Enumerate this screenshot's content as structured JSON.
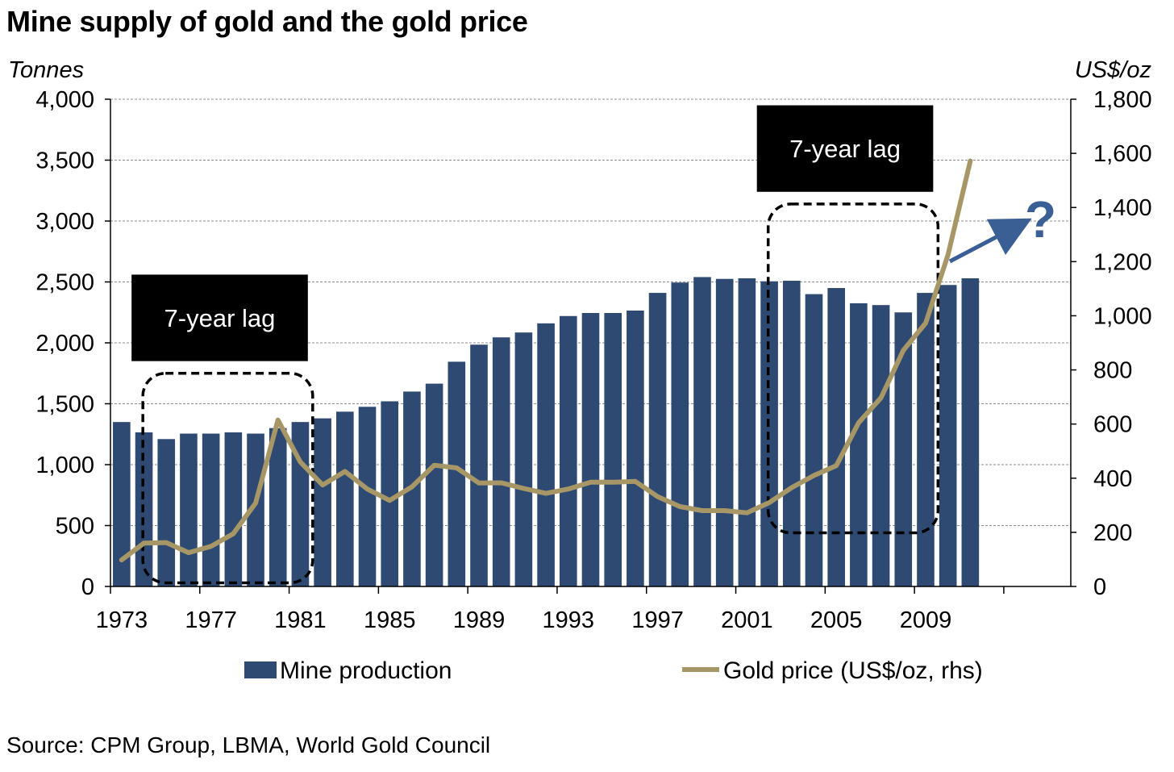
{
  "title": "Mine supply of gold and the gold price",
  "source": "Source: CPM Group, LBMA, World Gold Council",
  "chart_data": {
    "type": "bar+line",
    "title": "Mine supply of gold and the gold price",
    "y_left_label": "Tonnes",
    "y_right_label": "US$/oz",
    "y_left_lim": [
      0,
      4000
    ],
    "y_left_ticks": [
      "0",
      "500",
      "1,000",
      "1,500",
      "2,000",
      "2,500",
      "3,000",
      "3,500",
      "4,000"
    ],
    "y_right_lim": [
      0,
      1800
    ],
    "y_right_ticks": [
      "0",
      "200",
      "400",
      "600",
      "800",
      "1,000",
      "1,200",
      "1,400",
      "1,600",
      "1,800"
    ],
    "x_tick_labels": [
      "1973",
      "1977",
      "1981",
      "1985",
      "1989",
      "1993",
      "1997",
      "2001",
      "2005",
      "2009"
    ],
    "x_range": [
      1973,
      2016
    ],
    "grid": true,
    "legend_position": "bottom",
    "years": [
      1973,
      1974,
      1975,
      1976,
      1977,
      1978,
      1979,
      1980,
      1981,
      1982,
      1983,
      1984,
      1985,
      1986,
      1987,
      1988,
      1989,
      1990,
      1991,
      1992,
      1993,
      1994,
      1995,
      1996,
      1997,
      1998,
      1999,
      2000,
      2001,
      2002,
      2003,
      2004,
      2005,
      2006,
      2007,
      2008,
      2009,
      2010,
      2011
    ],
    "series": [
      {
        "name": "Mine production",
        "type": "bar",
        "axis": "left",
        "color": "#2e4a73",
        "values": [
          1350,
          1265,
          1210,
          1255,
          1255,
          1265,
          1255,
          1300,
          1350,
          1380,
          1435,
          1475,
          1520,
          1600,
          1665,
          1845,
          1985,
          2045,
          2085,
          2160,
          2220,
          2245,
          2245,
          2265,
          2410,
          2495,
          2540,
          2525,
          2530,
          2505,
          2510,
          2400,
          2450,
          2325,
          2310,
          2250,
          2410,
          2475,
          2530
        ]
      },
      {
        "name": "Gold price (US$/oz, rhs)",
        "type": "line",
        "axis": "right",
        "color": "#a89766",
        "values": [
          98,
          160,
          162,
          125,
          148,
          195,
          308,
          615,
          460,
          375,
          425,
          360,
          318,
          368,
          448,
          438,
          382,
          383,
          362,
          344,
          360,
          385,
          385,
          388,
          332,
          295,
          280,
          280,
          272,
          310,
          365,
          410,
          446,
          605,
          697,
          872,
          973,
          1225,
          1572
        ]
      }
    ],
    "annotations": [
      {
        "label": "7-year lag",
        "spans_years": [
          1974,
          1981
        ]
      },
      {
        "label": "7-year lag",
        "spans_years": [
          2002,
          2009
        ]
      },
      {
        "label": "?"
      }
    ]
  }
}
